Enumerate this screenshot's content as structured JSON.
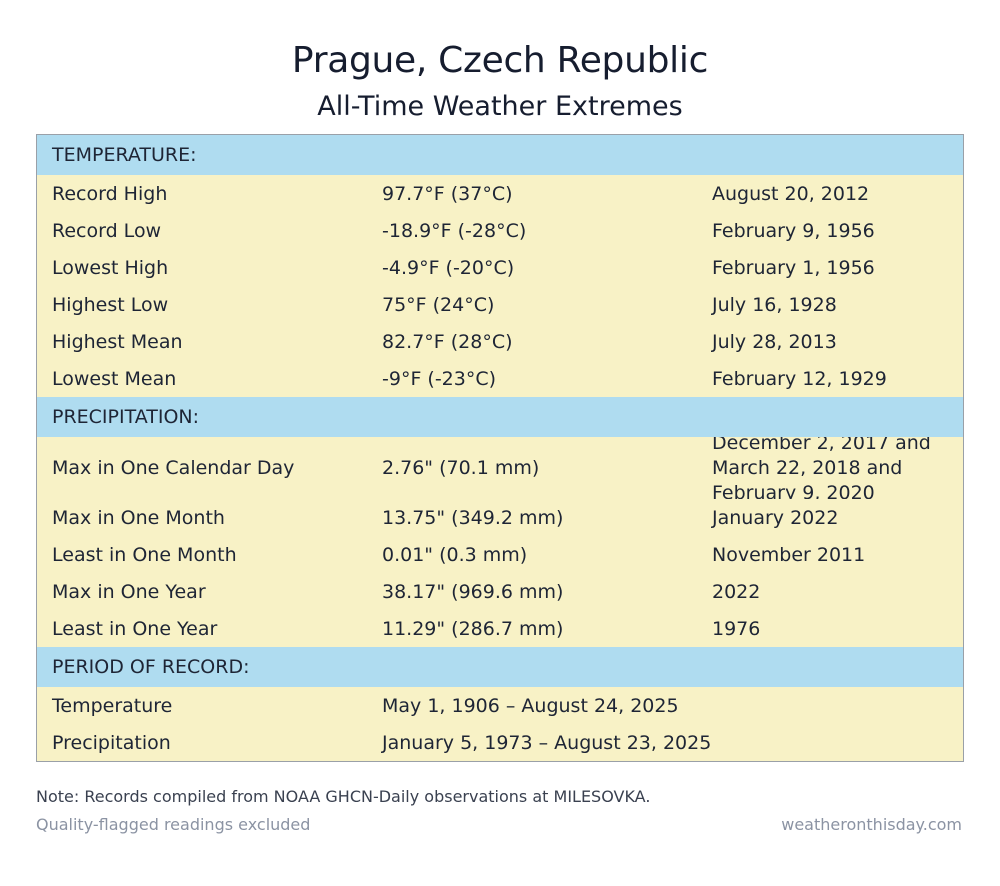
{
  "header": {
    "title": "Prague, Czech Republic",
    "subtitle": "All-Time Weather Extremes"
  },
  "sections": {
    "temperature": {
      "label": "TEMPERATURE:",
      "rows": [
        {
          "label": "Record High",
          "value": "97.7°F (37°C)",
          "date": "August 20, 2012"
        },
        {
          "label": "Record Low",
          "value": "-18.9°F (-28°C)",
          "date": "February 9, 1956"
        },
        {
          "label": "Lowest High",
          "value": "-4.9°F (-20°C)",
          "date": "February 1, 1956"
        },
        {
          "label": "Highest Low",
          "value": "75°F (24°C)",
          "date": "July 16, 1928"
        },
        {
          "label": "Highest Mean",
          "value": "82.7°F (28°C)",
          "date": "July 28, 2013"
        },
        {
          "label": "Lowest Mean",
          "value": "-9°F (-23°C)",
          "date": "February 12, 1929"
        }
      ]
    },
    "precipitation": {
      "label": "PRECIPITATION:",
      "rows": [
        {
          "label": "Max in One Calendar Day",
          "value": "2.76\" (70.1 mm)",
          "date": "December 2, 2017 and March 22, 2018 and February 9, 2020"
        },
        {
          "label": "Max in One Month",
          "value": "13.75\" (349.2 mm)",
          "date": "January 2022"
        },
        {
          "label": "Least in One Month",
          "value": "0.01\" (0.3 mm)",
          "date": "November 2011"
        },
        {
          "label": "Max in One Year",
          "value": "38.17\" (969.6 mm)",
          "date": "2022"
        },
        {
          "label": "Least in One Year",
          "value": "11.29\" (286.7 mm)",
          "date": "1976"
        }
      ]
    },
    "period": {
      "label": "PERIOD OF RECORD:",
      "rows": [
        {
          "label": "Temperature",
          "value": "May 1, 1906 – August 24, 2025"
        },
        {
          "label": "Precipitation",
          "value": "January 5, 1973 – August 23, 2025"
        }
      ]
    }
  },
  "footer": {
    "note": "Note: Records compiled from NOAA GHCN-Daily observations at MILESOVKA.",
    "disclaimer": "Quality-flagged readings excluded",
    "source": "weatheronthisday.com"
  },
  "colors": {
    "section_header_bg": "#afdcf0",
    "row_bg": "#f8f2c6",
    "text": "#1e2535",
    "muted_text": "#8b93a3"
  }
}
